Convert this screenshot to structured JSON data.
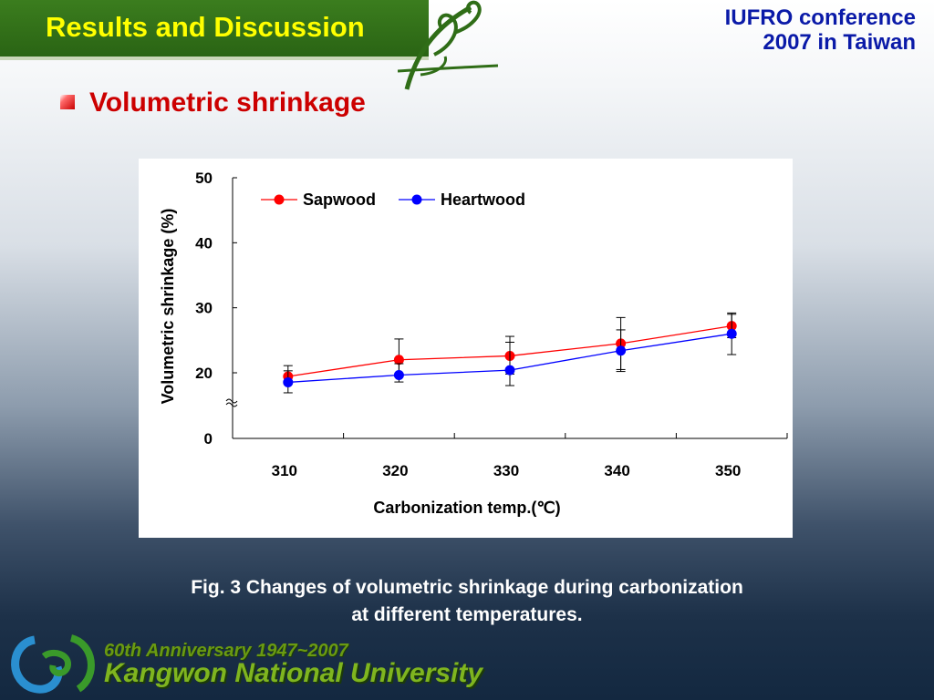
{
  "header": {
    "title": "Results and Discussion",
    "conference_line1": "IUFRO conference",
    "conference_line2": "2007 in Taiwan"
  },
  "section": {
    "heading": "Volumetric shrinkage"
  },
  "figure": {
    "caption_line1": "Fig. 3 Changes of volumetric shrinkage during carbonization",
    "caption_line2": "at different temperatures."
  },
  "footer": {
    "anniversary": "60th Anniversary 1947~2007",
    "university": "Kangwon National University"
  },
  "colors": {
    "title_bar": "#2f6d17",
    "title_text": "#ffff00",
    "conference_text": "#0a1aa8",
    "heading": "#cc0000",
    "sapwood": "#ff0000",
    "heartwood": "#0000ff"
  },
  "chart_data": {
    "type": "line",
    "xlabel": "Carbonization temp.(℃)",
    "ylabel": "Volumetric shrinkage (%)",
    "categories": [
      "310",
      "320",
      "330",
      "340",
      "350"
    ],
    "y_ticks": [
      "0",
      "20",
      "30",
      "40",
      "50"
    ],
    "ylim": [
      0,
      50
    ],
    "axis_break": "between 0 and 20",
    "legend_placement": "top-left",
    "grid": false,
    "series": [
      {
        "name": "Sapwood",
        "color": "#ff0000",
        "values": [
          18.9,
          22.0,
          22.6,
          24.5,
          27.2
        ],
        "error": [
          2.2,
          3.2,
          3.0,
          4.0,
          1.8
        ]
      },
      {
        "name": "Heartwood",
        "color": "#0000ff",
        "values": [
          17.1,
          19.3,
          20.4,
          23.4,
          26.0
        ],
        "error": [
          3.2,
          2.1,
          4.3,
          3.2,
          3.2
        ]
      }
    ]
  }
}
